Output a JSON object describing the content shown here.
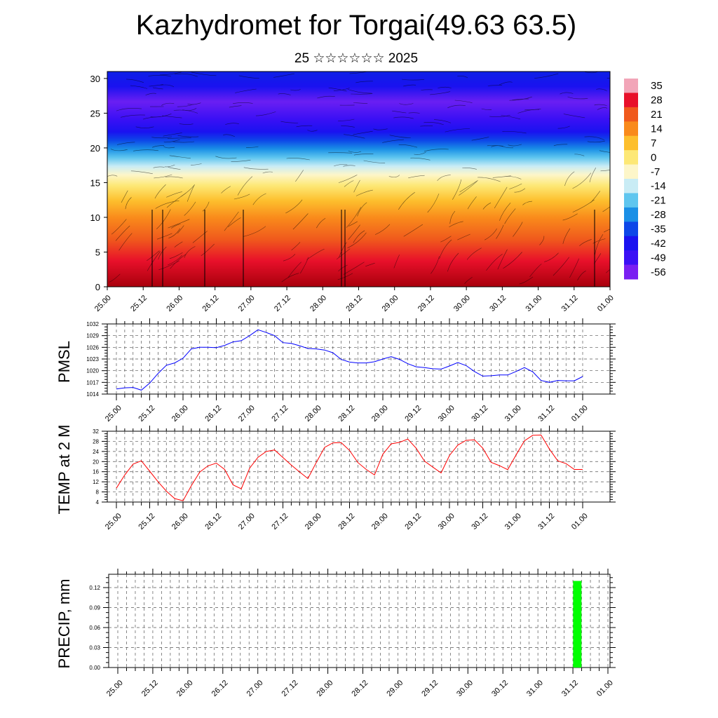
{
  "header": {
    "title": "Kazhydromet for Torgai(49.63 63.5)",
    "subtitle": "25 ☆☆☆☆☆☆ 2025"
  },
  "time_labels": [
    "25.00",
    "25.12",
    "26.00",
    "26.12",
    "27.00",
    "27.12",
    "28.00",
    "28.12",
    "29.00",
    "29.12",
    "30.00",
    "30.12",
    "31.00",
    "31.12",
    "01.00"
  ],
  "chart_data": [
    {
      "id": "cross_section",
      "type": "heatmap",
      "description_free": true,
      "ylim": [
        0,
        31
      ],
      "yticks": [
        0,
        5,
        10,
        15,
        20,
        25,
        30
      ],
      "colorbar": {
        "labels": [
          "35",
          "28",
          "21",
          "14",
          "7",
          "0",
          "-7",
          "-14",
          "-21",
          "-28",
          "-35",
          "-42",
          "-49",
          "-56"
        ],
        "colors": [
          "#f2a5b8",
          "#e8102a",
          "#f0591c",
          "#f98a1b",
          "#fdbf2d",
          "#fde876",
          "#fdf6c9",
          "#c9ecf5",
          "#5fc6ef",
          "#1a8fe6",
          "#0d47e8",
          "#1a12f0",
          "#3b10f5",
          "#7a1ff2"
        ]
      }
    },
    {
      "id": "pmsl",
      "type": "line",
      "ylabel": "PMSL",
      "ylim": [
        1014,
        1032
      ],
      "yticks": [
        1014,
        1017,
        1020,
        1023,
        1026,
        1029,
        1032
      ],
      "color": "#0000ff",
      "x": [
        0,
        3,
        6,
        9,
        12,
        15,
        18,
        21,
        24,
        27,
        30,
        33,
        36,
        39,
        42,
        45,
        48,
        51,
        54,
        57,
        60,
        63,
        66,
        69,
        72,
        75,
        78,
        81,
        84,
        87,
        90,
        93,
        96,
        99,
        102,
        105,
        108,
        111,
        114,
        117,
        120,
        123,
        126,
        129,
        132,
        135,
        138,
        141,
        144,
        147,
        150,
        153,
        156,
        159,
        162,
        165,
        168
      ],
      "values": [
        1015.3,
        1015.6,
        1015.7,
        1015.0,
        1016.8,
        1019.3,
        1021.4,
        1022.0,
        1023.2,
        1025.6,
        1026.0,
        1026.0,
        1025.9,
        1026.5,
        1027.4,
        1027.7,
        1029.0,
        1030.5,
        1029.8,
        1029.0,
        1027.2,
        1027.0,
        1026.4,
        1025.7,
        1025.6,
        1025.3,
        1024.6,
        1022.9,
        1022.2,
        1022.0,
        1022.0,
        1022.3,
        1023.0,
        1023.6,
        1022.9,
        1021.8,
        1021.0,
        1020.8,
        1020.5,
        1020.4,
        1021.2,
        1022.1,
        1021.3,
        1019.8,
        1018.6,
        1018.7,
        1018.9,
        1018.9,
        1019.8,
        1020.8,
        1019.7,
        1017.5,
        1017.0,
        1017.5,
        1017.4,
        1017.4,
        1018.5
      ]
    },
    {
      "id": "temp",
      "type": "line",
      "ylabel": "TEMP at 2 M",
      "ylim": [
        4,
        32
      ],
      "yticks": [
        4,
        8,
        12,
        16,
        20,
        24,
        28,
        32
      ],
      "color": "#ff0000",
      "x": [
        0,
        3,
        6,
        9,
        12,
        15,
        18,
        21,
        24,
        27,
        30,
        33,
        36,
        39,
        42,
        45,
        48,
        51,
        54,
        57,
        60,
        63,
        66,
        69,
        72,
        75,
        78,
        81,
        84,
        87,
        90,
        93,
        96,
        99,
        102,
        105,
        108,
        111,
        114,
        117,
        120,
        123,
        126,
        129,
        132,
        135,
        138,
        141,
        144,
        147,
        150,
        153,
        156,
        159,
        162,
        165,
        168
      ],
      "values": [
        9.5,
        14.7,
        19.0,
        20.3,
        16.2,
        12.0,
        8.3,
        5.4,
        4.5,
        10.5,
        15.8,
        18.3,
        19.4,
        16.9,
        10.8,
        9.2,
        17.4,
        21.7,
        24.0,
        24.6,
        21.6,
        18.6,
        15.9,
        13.3,
        19.6,
        25.6,
        27.4,
        27.5,
        24.4,
        19.6,
        16.9,
        14.7,
        22.9,
        27.0,
        27.6,
        28.9,
        25.3,
        20.2,
        17.8,
        15.5,
        22.4,
        26.5,
        28.4,
        28.6,
        25.3,
        19.7,
        18.4,
        16.8,
        22.6,
        28.2,
        30.4,
        30.5,
        25.0,
        20.3,
        19.2,
        16.9,
        16.9
      ]
    },
    {
      "id": "precip",
      "type": "bar",
      "ylabel": "PRECIP, mm",
      "ylim": [
        0,
        0.14
      ],
      "yticks": [
        0,
        0.03,
        0.06,
        0.09,
        0.12
      ],
      "ytick_labels": [
        "0.00",
        "0.03",
        "0.06",
        "0.09",
        "0.12"
      ],
      "color": "#00ff00",
      "bars": [
        {
          "x": 156,
          "value": 0.13
        }
      ]
    }
  ]
}
